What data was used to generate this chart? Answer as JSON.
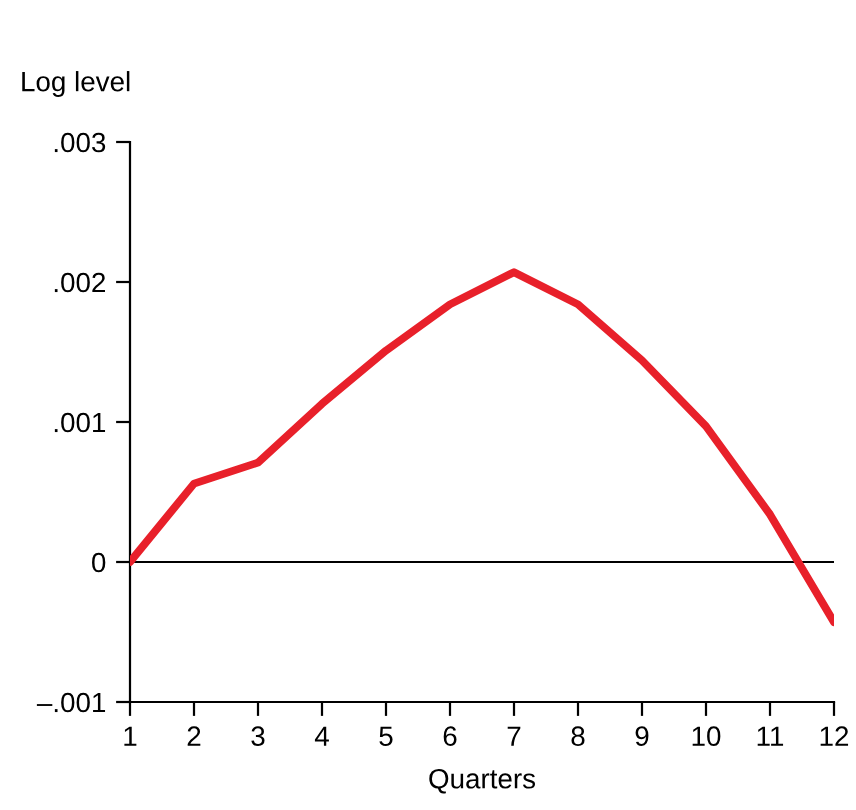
{
  "chart_data": {
    "type": "line",
    "ylabel": "Log level",
    "xlabel": "Quarters",
    "x": [
      1,
      2,
      3,
      4,
      5,
      6,
      7,
      8,
      9,
      10,
      11,
      12
    ],
    "series": [
      {
        "color": "#e8202a",
        "values": [
          0,
          0.00056,
          0.00071,
          0.00113,
          0.00151,
          0.00184,
          0.00207,
          0.00184,
          0.00144,
          0.00097,
          0.00034,
          -0.00043
        ]
      }
    ],
    "xlim": [
      1,
      12
    ],
    "xticks": [
      1,
      2,
      3,
      4,
      5,
      6,
      7,
      8,
      9,
      10,
      11,
      12
    ],
    "ylim": [
      -0.001,
      0.003
    ],
    "yticks": [
      {
        "value": -0.001,
        "label": "–.001"
      },
      {
        "value": 0,
        "label": "0"
      },
      {
        "value": 0.001,
        "label": ".001"
      },
      {
        "value": 0.002,
        "label": ".002"
      },
      {
        "value": 0.003,
        "label": ".003"
      }
    ],
    "ref_lines": [
      {
        "axis": "y",
        "value": 0,
        "color": "#000000"
      }
    ],
    "grid": false,
    "legend": false,
    "marker": "none",
    "line_style": "solid"
  }
}
